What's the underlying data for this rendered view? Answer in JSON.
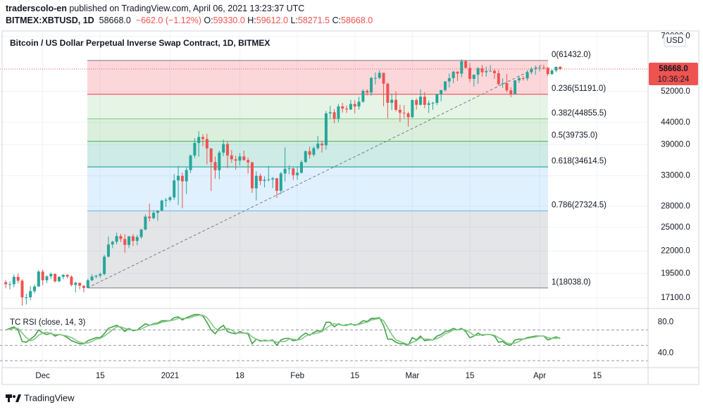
{
  "header": {
    "author": "traderscolo-en",
    "published": "published on TradingView.com, April 06, 2021 13:23:37 UTC",
    "symbol": "BITMEX:XBTUSD, 1D",
    "price": "58668.0",
    "change": "−662.0 (−1.12%)",
    "quote": [
      {
        "label": "O:",
        "value": "59330.0"
      },
      {
        "label": "H:",
        "value": "59612.0"
      },
      {
        "label": "L:",
        "value": "58271.5"
      },
      {
        "label": "C:",
        "value": "58668.0"
      }
    ]
  },
  "footer": "TradingView",
  "chart_data": [
    {
      "type": "candlestick",
      "title": "Bitcoin / US Dollar Perpetual Inverse Swap Contract, 1D, BITMEX",
      "currency": "USD",
      "log_scale": true,
      "grid": true,
      "up_color": "#26a69a",
      "down_color": "#ef5350",
      "ylim": [
        16210,
        72000
      ],
      "yticks": [
        {
          "value": 70000,
          "label": "70000.0"
        },
        {
          "value": 52000,
          "label": "52000.0"
        },
        {
          "value": 44000,
          "label": "44000.0"
        },
        {
          "value": 39000,
          "label": "39000.0"
        },
        {
          "value": 33000,
          "label": "33000.0"
        },
        {
          "value": 28000,
          "label": "28000.0"
        },
        {
          "value": 25000,
          "label": "25000.0"
        },
        {
          "value": 22000,
          "label": "22000.0"
        },
        {
          "value": 19500,
          "label": "19500.0"
        },
        {
          "value": 17100,
          "label": "17100.0"
        }
      ],
      "xlim": [
        -1.4,
        156.4
      ],
      "xticks": [
        {
          "value": 9,
          "label": "Dec"
        },
        {
          "value": 23,
          "label": "15"
        },
        {
          "value": 40,
          "label": "2021"
        },
        {
          "value": 57,
          "label": "18"
        },
        {
          "value": 71,
          "label": "Feb"
        },
        {
          "value": 85,
          "label": "15"
        },
        {
          "value": 99,
          "label": "Mar"
        },
        {
          "value": 113,
          "label": "15"
        },
        {
          "value": 130,
          "label": "Apr"
        },
        {
          "value": 144,
          "label": "15"
        }
      ],
      "last_price": {
        "value": 58668,
        "label": "58668.0"
      },
      "countdown": "10:36:24",
      "fib_levels": [
        {
          "value": 61432,
          "label": "0(61432.0)",
          "color": "#787b86"
        },
        {
          "value": 51191,
          "label": "0.236(51191.0)",
          "color": "#f23645"
        },
        {
          "value": 44855,
          "label": "0.382(44855.5)",
          "color": "#81c784"
        },
        {
          "value": 39735,
          "label": "0.5(39735.0)",
          "color": "#4caf50"
        },
        {
          "value": 34614,
          "label": "0.618(34614.5)",
          "color": "#089981"
        },
        {
          "value": 27324,
          "label": "0.786(27324.5)",
          "color": "#64b5f6"
        },
        {
          "value": 18038,
          "label": "1(18038.0)",
          "color": "#787b86"
        }
      ],
      "open": [
        18600,
        18400,
        18400,
        19150,
        18750,
        17150,
        17150,
        17730,
        18180,
        19700,
        18800,
        19200,
        19450,
        18700,
        19150,
        19360,
        19170,
        18330,
        18550,
        18250,
        18040,
        18800,
        19170,
        19270,
        19440,
        21350,
        22800,
        23130,
        23850,
        23480,
        22740,
        23820,
        23240,
        23730,
        24710,
        26490,
        26270,
        27040,
        27360,
        28880,
        28990,
        29380,
        32190,
        33000,
        32030,
        34040,
        36820,
        39370,
        40670,
        40240,
        38240,
        35540,
        34010,
        37390,
        39150,
        36830,
        36070,
        35810,
        36630,
        35910,
        35470,
        30850,
        33000,
        32100,
        32290,
        32370,
        32570,
        30440,
        33410,
        34270,
        34340,
        33110,
        33540,
        35530,
        37680,
        36960,
        38290,
        39260,
        38900,
        46200,
        46480,
        44900,
        47970,
        47400,
        47190,
        48600,
        47940,
        49200,
        52150,
        51680,
        55890,
        55920,
        57480,
        54210,
        48890,
        49700,
        47090,
        46340,
        46180,
        45240,
        49620,
        48380,
        50540,
        48370,
        48760,
        48880,
        51210,
        52380,
        54880,
        55840,
        57810,
        57230,
        61190,
        59010,
        55620,
        56900,
        58910,
        57650,
        58030,
        58100,
        57350,
        54080,
        54340,
        52300,
        51300,
        55190,
        55830,
        55780,
        57630,
        58730,
        58920,
        59100,
        59040,
        57090,
        58200,
        59330
      ],
      "high": [
        18800,
        18700,
        19400,
        19500,
        18900,
        17500,
        18200,
        18350,
        19860,
        19900,
        19300,
        19600,
        19500,
        19200,
        19420,
        19400,
        19300,
        18650,
        18550,
        18300,
        18950,
        19400,
        19350,
        19570,
        21560,
        23800,
        23280,
        24300,
        24150,
        24100,
        23850,
        24100,
        24000,
        24800,
        26800,
        28400,
        27400,
        27400,
        29000,
        29300,
        29600,
        33300,
        34800,
        33600,
        34500,
        37000,
        40400,
        41950,
        41300,
        41400,
        38300,
        36600,
        37800,
        40100,
        39700,
        37900,
        36800,
        37300,
        37800,
        36400,
        35600,
        33800,
        33400,
        32900,
        34800,
        32800,
        32600,
        33700,
        38500,
        34900,
        34500,
        34700,
        35900,
        37800,
        38600,
        38700,
        40900,
        39700,
        46800,
        48100,
        47300,
        48600,
        48900,
        48200,
        49700,
        49600,
        50500,
        52600,
        52600,
        56300,
        57600,
        58300,
        57500,
        54500,
        51400,
        52000,
        48400,
        48300,
        46600,
        49800,
        50100,
        52600,
        51800,
        49500,
        49200,
        51400,
        52400,
        54900,
        57300,
        58100,
        58000,
        61800,
        61600,
        60600,
        56900,
        59300,
        60000,
        59400,
        59900,
        58600,
        58400,
        55800,
        57100,
        53200,
        55300,
        56600,
        56500,
        58300,
        59300,
        59800,
        59500,
        60000,
        59300,
        58500,
        59500,
        59612
      ],
      "low": [
        18000,
        17900,
        18100,
        18500,
        16400,
        16500,
        16900,
        17500,
        18150,
        18300,
        18500,
        18900,
        18550,
        18600,
        18900,
        19000,
        18200,
        17600,
        17900,
        17600,
        18000,
        18700,
        19000,
        19050,
        19300,
        21250,
        22350,
        22800,
        23100,
        21800,
        22350,
        22600,
        22700,
        23500,
        24600,
        25800,
        26100,
        25900,
        27300,
        27900,
        28700,
        29000,
        28200,
        27700,
        29900,
        33500,
        36300,
        36600,
        38700,
        35100,
        30400,
        32500,
        32400,
        36700,
        34400,
        35400,
        34100,
        34900,
        35800,
        33400,
        30100,
        28900,
        31400,
        31000,
        32000,
        30900,
        29300,
        29900,
        32000,
        33300,
        32300,
        32300,
        33400,
        35400,
        36200,
        36600,
        38000,
        37400,
        38000,
        45000,
        43800,
        44000,
        46400,
        46300,
        47000,
        46200,
        47100,
        48900,
        50900,
        50800,
        54000,
        55500,
        48000,
        45000,
        47000,
        46700,
        44100,
        45000,
        43000,
        45100,
        47100,
        48200,
        47500,
        46300,
        47100,
        48300,
        49300,
        51900,
        53100,
        54300,
        55000,
        56100,
        58900,
        54600,
        53400,
        54200,
        56300,
        56300,
        57900,
        55600,
        53700,
        53000,
        51700,
        50400,
        51300,
        54400,
        55100,
        55100,
        57000,
        56900,
        57900,
        58500,
        56500,
        56900,
        57600,
        58271.5
      ],
      "close": [
        18400,
        18400,
        19150,
        18750,
        17150,
        17150,
        17730,
        18180,
        19700,
        18800,
        19200,
        19450,
        18700,
        19150,
        19360,
        19170,
        18330,
        18550,
        18250,
        18040,
        18800,
        19170,
        19270,
        19440,
        21350,
        22800,
        23130,
        23850,
        23480,
        22740,
        23820,
        23240,
        23730,
        24710,
        26490,
        26270,
        27040,
        27360,
        28880,
        28990,
        29380,
        32190,
        33000,
        32030,
        34040,
        36820,
        39370,
        40670,
        40240,
        38240,
        35540,
        34010,
        37390,
        39150,
        36830,
        36070,
        35810,
        36630,
        35910,
        35470,
        30850,
        33000,
        32100,
        32290,
        32370,
        32570,
        30440,
        33410,
        34270,
        34340,
        33110,
        33540,
        35530,
        37680,
        36960,
        38290,
        39260,
        38900,
        46200,
        46480,
        44900,
        47970,
        47400,
        47190,
        48600,
        47940,
        49200,
        52150,
        51680,
        55890,
        55920,
        57480,
        54210,
        48890,
        49700,
        47090,
        46340,
        46180,
        45240,
        49620,
        48380,
        50540,
        48370,
        48760,
        48880,
        51210,
        52380,
        54880,
        55840,
        57810,
        57230,
        61190,
        59010,
        55620,
        56900,
        58910,
        57650,
        58030,
        58100,
        57350,
        54080,
        54340,
        52300,
        51300,
        55190,
        55830,
        55780,
        57630,
        58730,
        58920,
        59100,
        59040,
        57090,
        58200,
        59330,
        58668
      ]
    },
    {
      "type": "line",
      "title": "TC RSI (close, 14, 3)",
      "ylim": [
        21,
        97
      ],
      "yticks": [
        {
          "value": 80,
          "label": "80.0"
        },
        {
          "value": 40,
          "label": "40.0"
        }
      ],
      "levels": [
        70,
        50,
        30
      ],
      "xlim": [
        -1.4,
        156.4
      ],
      "series": [
        {
          "color": "#43a047",
          "values": [
            70,
            72,
            74,
            70,
            55,
            54,
            58,
            62,
            70,
            66,
            64,
            66,
            62,
            64,
            63,
            60,
            56,
            54,
            52,
            52,
            56,
            58,
            60,
            60,
            65,
            72,
            74,
            76,
            73,
            68,
            72,
            69,
            70,
            74,
            78,
            76,
            78,
            79,
            82,
            82,
            82,
            86,
            87,
            83,
            86,
            88,
            90,
            90,
            88,
            80,
            70,
            65,
            72,
            76,
            68,
            66,
            65,
            68,
            66,
            65,
            52,
            58,
            56,
            56,
            56,
            57,
            50,
            57,
            59,
            59,
            56,
            57,
            62,
            66,
            63,
            67,
            69,
            68,
            80,
            80,
            74,
            78,
            76,
            76,
            78,
            76,
            78,
            82,
            81,
            85,
            85,
            86,
            76,
            58,
            58,
            54,
            52,
            52,
            50,
            60,
            57,
            62,
            56,
            57,
            57,
            62,
            64,
            68,
            69,
            72,
            70,
            72,
            68,
            60,
            62,
            66,
            63,
            64,
            64,
            62,
            54,
            55,
            51,
            50,
            57,
            58,
            58,
            60,
            61,
            62,
            62,
            62,
            57,
            59,
            61,
            59
          ]
        },
        {
          "color": "#81c784",
          "values": [
            70,
            71,
            72,
            72,
            66,
            60,
            56,
            58,
            63,
            66,
            67,
            65,
            64,
            64,
            63,
            62,
            60,
            57,
            54,
            53,
            53,
            55,
            58,
            59,
            62,
            66,
            70,
            74,
            74,
            72,
            71,
            70,
            70,
            71,
            74,
            76,
            77,
            78,
            80,
            81,
            82,
            83,
            85,
            85,
            85,
            86,
            88,
            89,
            89,
            86,
            79,
            72,
            69,
            71,
            72,
            70,
            66,
            66,
            66,
            66,
            61,
            58,
            55,
            57,
            56,
            56,
            54,
            55,
            55,
            58,
            58,
            57,
            58,
            62,
            64,
            65,
            66,
            68,
            72,
            76,
            78,
            77,
            76,
            77,
            77,
            77,
            77,
            79,
            80,
            83,
            84,
            85,
            82,
            73,
            64,
            57,
            55,
            53,
            51,
            54,
            56,
            60,
            58,
            58,
            57,
            59,
            61,
            65,
            67,
            70,
            70,
            71,
            70,
            67,
            63,
            63,
            64,
            64,
            64,
            63,
            60,
            57,
            53,
            52,
            53,
            55,
            58,
            59,
            60,
            61,
            62,
            62,
            60,
            59,
            59,
            60
          ]
        }
      ]
    }
  ]
}
